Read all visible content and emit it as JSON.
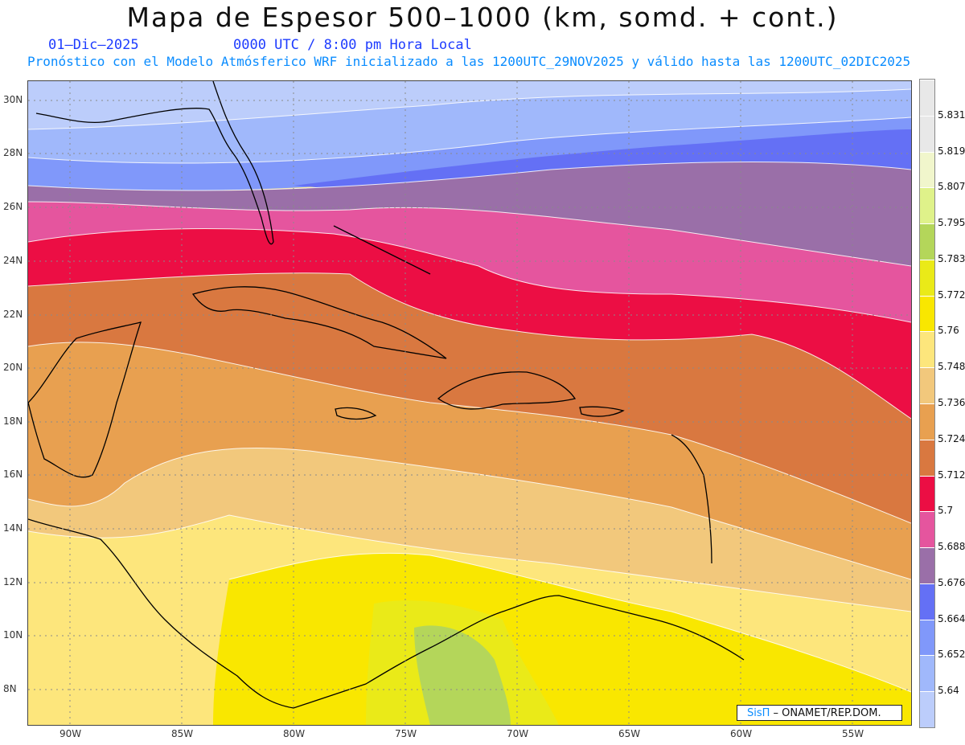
{
  "header": {
    "title": "Mapa de Espesor 500–1000 (km, somd. + cont.)",
    "date": "01–Dic–2025",
    "time": "0000 UTC / 8:00 pm Hora Local",
    "forecast": "Pronóstico con el Modelo Atmósferico WRF inicializado a las 1200UTC_29NOV2025 y válido hasta las  1200UTC_02DIC2025"
  },
  "axes": {
    "lat_labels": [
      "30N",
      "28N",
      "26N",
      "24N",
      "22N",
      "20N",
      "18N",
      "16N",
      "14N",
      "12N",
      "10N",
      "8N"
    ],
    "lon_labels": [
      "90W",
      "85W",
      "80W",
      "75W",
      "70W",
      "65W",
      "60W",
      "55W"
    ]
  },
  "colorbar": {
    "levels": [
      "5.64",
      "5.652",
      "5.664",
      "5.676",
      "5.688",
      "5.7",
      "5.712",
      "5.724",
      "5.736",
      "5.748",
      "5.76",
      "5.772",
      "5.783",
      "5.795",
      "5.807",
      "5.819",
      "5.831"
    ],
    "colors": [
      "#bccdfb",
      "#a0b8fb",
      "#8098fa",
      "#6470f5",
      "#9a6fa8",
      "#e5559e",
      "#ec0e44",
      "#d97840",
      "#e8a050",
      "#f2c87c",
      "#fde67c",
      "#f9e700",
      "#eaea18",
      "#b4d65a",
      "#dff28a",
      "#f1f6cc",
      "#e8e8e8",
      "#e8e8e8"
    ]
  },
  "credit": {
    "brand": "SisΠ",
    "org": " –  ONAMET/REP.DOM."
  }
}
